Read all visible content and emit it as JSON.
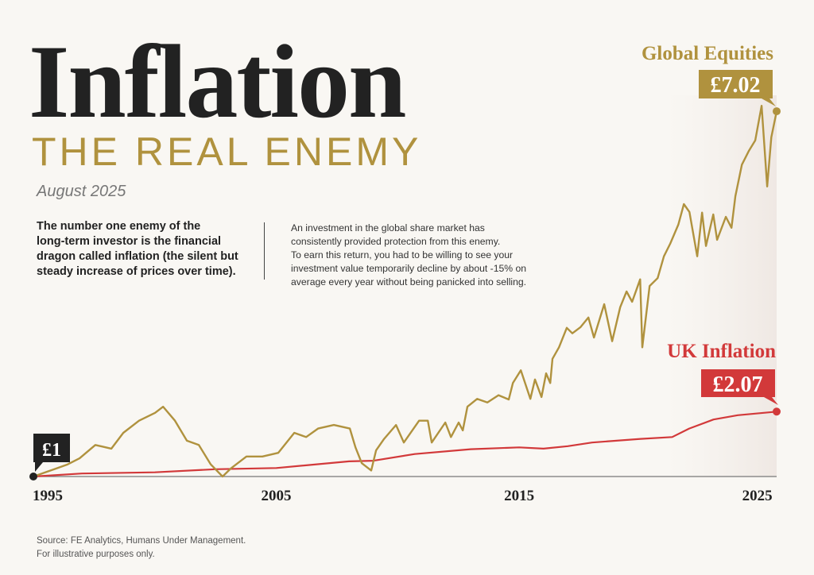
{
  "header": {
    "title": "Inflation",
    "subtitle": "THE REAL ENEMY",
    "date": "August 2025"
  },
  "intro": {
    "lead_lines": [
      "The number one enemy of the",
      "long-term investor is the financial",
      "dragon called inflation (the silent but",
      "steady increase of prices over time)."
    ],
    "body_lines": [
      "An investment in the global share market has",
      "consistently provided protection from this enemy.",
      "To earn this return, you had to be willing to see your",
      "investment value temporarily decline by about -15% on",
      "average every year without being panicked into selling."
    ]
  },
  "footer": {
    "source_lines": [
      "Source: FE Analytics, Humans Under Management.",
      "For illustrative purposes only."
    ]
  },
  "colors": {
    "equities": "#b0923e",
    "inflation": "#d2393a",
    "start": "#222222",
    "background": "#f9f7f3",
    "axis": "#777777"
  },
  "chart_data": {
    "type": "line",
    "title": "",
    "xlabel": "",
    "ylabel": "",
    "xlim": [
      1995,
      2025.6
    ],
    "ylim": [
      1,
      7.1
    ],
    "x_ticks": [
      1995,
      2005,
      2015,
      2025
    ],
    "x_tick_labels": [
      "1995",
      "2005",
      "2015",
      "2025"
    ],
    "grid": false,
    "start_label": "£1",
    "series": [
      {
        "name": "Global Equities",
        "end_label": "£7.02",
        "color": "#b0923e",
        "points": [
          [
            1995.0,
            1.0
          ],
          [
            1995.92,
            1.13
          ],
          [
            1996.41,
            1.2
          ],
          [
            1996.9,
            1.3
          ],
          [
            1997.55,
            1.52
          ],
          [
            1998.21,
            1.46
          ],
          [
            1998.7,
            1.72
          ],
          [
            1999.35,
            1.92
          ],
          [
            2000.01,
            2.05
          ],
          [
            2000.34,
            2.15
          ],
          [
            2000.83,
            1.92
          ],
          [
            2001.32,
            1.59
          ],
          [
            2001.81,
            1.52
          ],
          [
            2002.3,
            1.2
          ],
          [
            2002.79,
            1.0
          ],
          [
            2003.12,
            1.13
          ],
          [
            2003.77,
            1.33
          ],
          [
            2004.43,
            1.33
          ],
          [
            2005.08,
            1.39
          ],
          [
            2005.74,
            1.72
          ],
          [
            2006.23,
            1.65
          ],
          [
            2006.72,
            1.79
          ],
          [
            2007.37,
            1.85
          ],
          [
            2008.03,
            1.79
          ],
          [
            2008.26,
            1.48
          ],
          [
            2008.52,
            1.22
          ],
          [
            2008.91,
            1.1
          ],
          [
            2009.11,
            1.43
          ],
          [
            2009.44,
            1.62
          ],
          [
            2009.93,
            1.85
          ],
          [
            2010.25,
            1.56
          ],
          [
            2010.88,
            1.92
          ],
          [
            2011.24,
            1.92
          ],
          [
            2011.4,
            1.56
          ],
          [
            2011.96,
            1.89
          ],
          [
            2012.19,
            1.65
          ],
          [
            2012.51,
            1.89
          ],
          [
            2012.68,
            1.76
          ],
          [
            2012.87,
            2.15
          ],
          [
            2013.27,
            2.28
          ],
          [
            2013.69,
            2.22
          ],
          [
            2014.15,
            2.34
          ],
          [
            2014.57,
            2.27
          ],
          [
            2014.74,
            2.54
          ],
          [
            2015.07,
            2.75
          ],
          [
            2015.46,
            2.28
          ],
          [
            2015.65,
            2.6
          ],
          [
            2015.92,
            2.31
          ],
          [
            2016.11,
            2.7
          ],
          [
            2016.28,
            2.54
          ],
          [
            2016.37,
            2.94
          ],
          [
            2016.64,
            3.13
          ],
          [
            2016.96,
            3.45
          ],
          [
            2017.19,
            3.36
          ],
          [
            2017.52,
            3.46
          ],
          [
            2017.85,
            3.62
          ],
          [
            2018.08,
            3.29
          ],
          [
            2018.5,
            3.84
          ],
          [
            2018.83,
            3.23
          ],
          [
            2019.16,
            3.79
          ],
          [
            2019.42,
            4.05
          ],
          [
            2019.65,
            3.88
          ],
          [
            2019.98,
            4.25
          ],
          [
            2020.07,
            3.13
          ],
          [
            2020.37,
            4.14
          ],
          [
            2020.7,
            4.27
          ],
          [
            2020.96,
            4.63
          ],
          [
            2021.22,
            4.84
          ],
          [
            2021.55,
            5.15
          ],
          [
            2021.78,
            5.49
          ],
          [
            2022.01,
            5.36
          ],
          [
            2022.33,
            4.63
          ],
          [
            2022.53,
            5.35
          ],
          [
            2022.69,
            4.8
          ],
          [
            2022.99,
            5.32
          ],
          [
            2023.15,
            4.9
          ],
          [
            2023.51,
            5.28
          ],
          [
            2023.74,
            5.1
          ],
          [
            2023.9,
            5.62
          ],
          [
            2024.17,
            6.14
          ],
          [
            2024.46,
            6.37
          ],
          [
            2024.72,
            6.54
          ],
          [
            2024.98,
            7.11
          ],
          [
            2025.21,
            5.78
          ],
          [
            2025.38,
            6.59
          ],
          [
            2025.6,
            7.02
          ]
        ]
      },
      {
        "name": "UK Inflation",
        "end_label": "£2.07",
        "color": "#d2393a",
        "points": [
          [
            1995.0,
            1.0
          ],
          [
            1997.0,
            1.05
          ],
          [
            2000.0,
            1.07
          ],
          [
            2002.5,
            1.12
          ],
          [
            2005.0,
            1.14
          ],
          [
            2008.0,
            1.25
          ],
          [
            2009.0,
            1.26
          ],
          [
            2010.7,
            1.37
          ],
          [
            2013.0,
            1.45
          ],
          [
            2015.0,
            1.48
          ],
          [
            2016.0,
            1.46
          ],
          [
            2017.0,
            1.5
          ],
          [
            2018.0,
            1.56
          ],
          [
            2020.0,
            1.62
          ],
          [
            2021.3,
            1.65
          ],
          [
            2022.0,
            1.79
          ],
          [
            2023.0,
            1.94
          ],
          [
            2024.0,
            2.01
          ],
          [
            2025.6,
            2.07
          ]
        ]
      }
    ]
  }
}
